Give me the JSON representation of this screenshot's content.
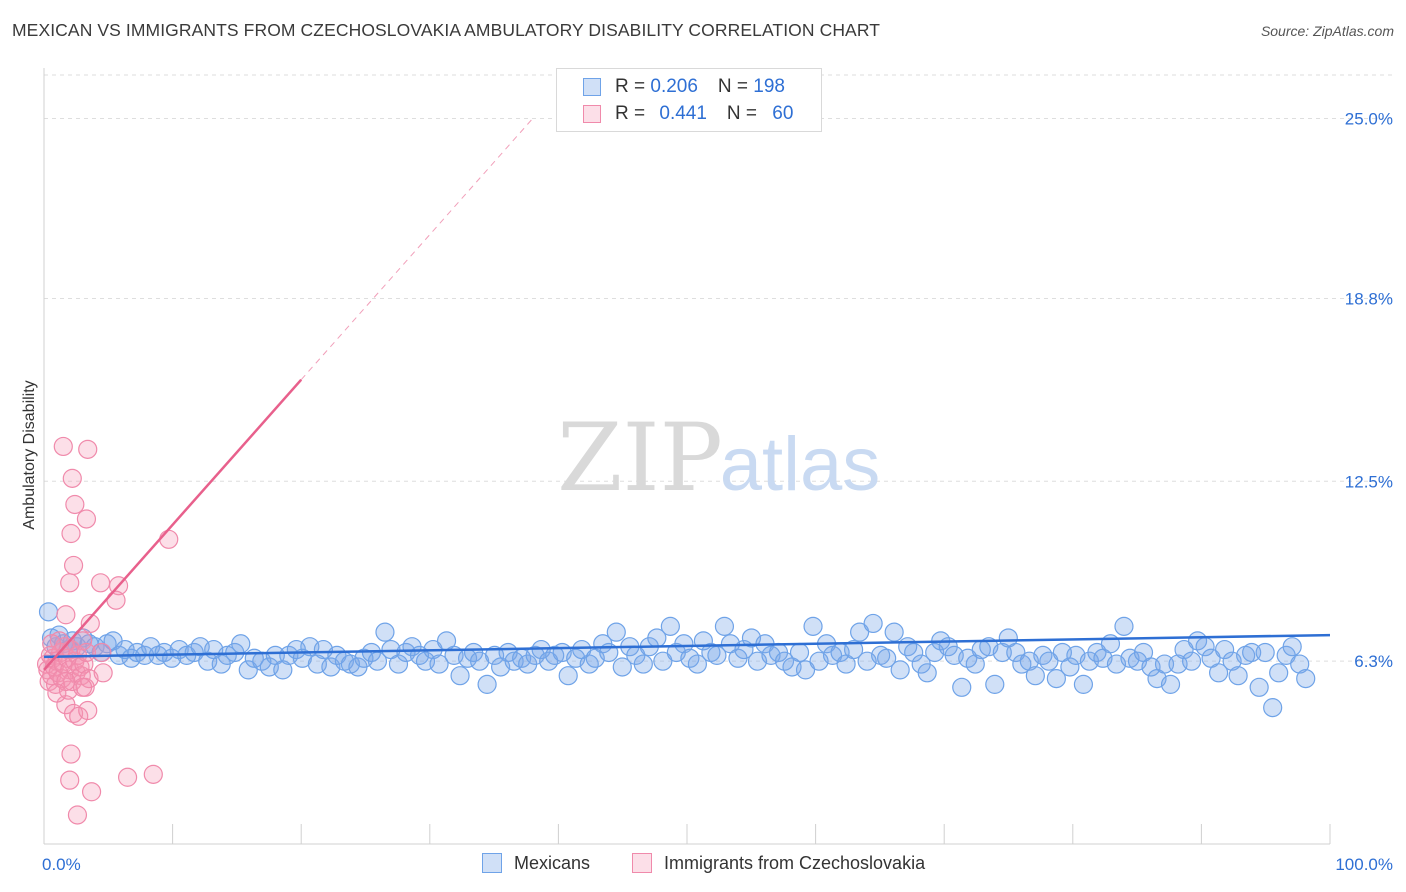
{
  "header": {
    "title": "MEXICAN VS IMMIGRANTS FROM CZECHOSLOVAKIA AMBULATORY DISABILITY CORRELATION CHART",
    "source": "Source: ZipAtlas.com"
  },
  "watermark": {
    "zip": "ZIP",
    "atlas": "atlas"
  },
  "legend": {
    "rows": [
      {
        "r_label": "R = ",
        "r_value": "0.206",
        "n_label": "N = ",
        "n_value": "198",
        "color": "#6fa3e8"
      },
      {
        "r_label": "R = ",
        "r_value": "0.441",
        "n_label": "N = ",
        "n_value": "60",
        "color": "#f08aab"
      }
    ]
  },
  "bottom_legend": {
    "mexicans": "Mexicans",
    "czech": "Immigrants from Czechoslovakia"
  },
  "colors": {
    "mexicans_fill": "rgba(120,165,232,0.35)",
    "mexicans_stroke": "#6fa3e8",
    "mexicans_line": "#2e6fd4",
    "czech_fill": "rgba(244,150,180,0.30)",
    "czech_stroke": "#f08aab",
    "czech_line": "#e8608c",
    "tick_text": "#2e6fd4"
  },
  "chart_data": {
    "type": "scatter",
    "title": "MEXICAN VS IMMIGRANTS FROM CZECHOSLOVAKIA AMBULATORY DISABILITY CORRELATION CHART",
    "xlabel": "",
    "ylabel": "Ambulatory Disability",
    "xlim": [
      0,
      100
    ],
    "ylim": [
      0,
      26.5
    ],
    "x_tick_labels": [
      "0.0%",
      "100.0%"
    ],
    "y_ticks": [
      6.3,
      12.5,
      18.8,
      25.0
    ],
    "y_tick_labels": [
      "6.3%",
      "12.5%",
      "18.8%",
      "25.0%"
    ],
    "grid": true,
    "legend_position": "top-center",
    "series": [
      {
        "name": "Mexicans",
        "R": 0.206,
        "N": 198,
        "trend": {
          "x": [
            0,
            100
          ],
          "y": [
            6.45,
            7.2
          ]
        },
        "points": [
          [
            0.3,
            8.0
          ],
          [
            0.5,
            7.1
          ],
          [
            0.8,
            6.8
          ],
          [
            1.0,
            7.2
          ],
          [
            1.3,
            6.9
          ],
          [
            1.6,
            6.7
          ],
          [
            1.9,
            7.0
          ],
          [
            2.2,
            6.8
          ],
          [
            2.6,
            7.1
          ],
          [
            3.0,
            6.9
          ],
          [
            3.4,
            6.8
          ],
          [
            3.8,
            6.6
          ],
          [
            4.2,
            6.9
          ],
          [
            4.6,
            7.0
          ],
          [
            5.0,
            6.5
          ],
          [
            5.4,
            6.7
          ],
          [
            5.8,
            6.4
          ],
          [
            6.2,
            6.6
          ],
          [
            6.7,
            6.5
          ],
          [
            7.1,
            6.8
          ],
          [
            7.6,
            6.5
          ],
          [
            8.0,
            6.6
          ],
          [
            8.5,
            6.4
          ],
          [
            9.0,
            6.7
          ],
          [
            9.5,
            6.5
          ],
          [
            10.0,
            6.6
          ],
          [
            10.4,
            6.8
          ],
          [
            10.9,
            6.3
          ],
          [
            11.3,
            6.7
          ],
          [
            11.8,
            6.2
          ],
          [
            12.2,
            6.5
          ],
          [
            12.7,
            6.6
          ],
          [
            13.1,
            6.9
          ],
          [
            13.6,
            6.0
          ],
          [
            14.0,
            6.4
          ],
          [
            14.5,
            6.3
          ],
          [
            15.0,
            6.1
          ],
          [
            15.4,
            6.5
          ],
          [
            15.9,
            6.0
          ],
          [
            16.3,
            6.5
          ],
          [
            16.8,
            6.7
          ],
          [
            17.2,
            6.4
          ],
          [
            17.7,
            6.8
          ],
          [
            18.2,
            6.2
          ],
          [
            18.6,
            6.7
          ],
          [
            19.1,
            6.1
          ],
          [
            19.5,
            6.5
          ],
          [
            20.0,
            6.3
          ],
          [
            20.4,
            6.2
          ],
          [
            20.9,
            6.1
          ],
          [
            21.3,
            6.4
          ],
          [
            21.8,
            6.6
          ],
          [
            22.2,
            6.3
          ],
          [
            22.7,
            7.3
          ],
          [
            23.1,
            6.7
          ],
          [
            23.6,
            6.2
          ],
          [
            24.1,
            6.6
          ],
          [
            24.5,
            6.8
          ],
          [
            25.0,
            6.5
          ],
          [
            25.4,
            6.3
          ],
          [
            25.9,
            6.7
          ],
          [
            26.3,
            6.2
          ],
          [
            26.8,
            7.0
          ],
          [
            27.3,
            6.5
          ],
          [
            27.7,
            5.8
          ],
          [
            28.2,
            6.4
          ],
          [
            28.6,
            6.6
          ],
          [
            29.0,
            6.3
          ],
          [
            29.5,
            5.5
          ],
          [
            30.0,
            6.5
          ],
          [
            30.4,
            6.1
          ],
          [
            30.9,
            6.6
          ],
          [
            31.3,
            6.3
          ],
          [
            31.8,
            6.4
          ],
          [
            32.2,
            6.2
          ],
          [
            32.7,
            6.5
          ],
          [
            33.1,
            6.7
          ],
          [
            33.6,
            6.3
          ],
          [
            34.0,
            6.5
          ],
          [
            34.5,
            6.6
          ],
          [
            34.9,
            5.8
          ],
          [
            35.4,
            6.4
          ],
          [
            35.8,
            6.7
          ],
          [
            36.3,
            6.2
          ],
          [
            36.7,
            6.4
          ],
          [
            37.2,
            6.9
          ],
          [
            37.6,
            6.6
          ],
          [
            38.1,
            7.3
          ],
          [
            38.5,
            6.1
          ],
          [
            39.0,
            6.8
          ],
          [
            39.4,
            6.5
          ],
          [
            39.9,
            6.2
          ],
          [
            40.3,
            6.8
          ],
          [
            40.8,
            7.1
          ],
          [
            41.2,
            6.3
          ],
          [
            41.7,
            7.5
          ],
          [
            42.1,
            6.6
          ],
          [
            42.6,
            6.9
          ],
          [
            43.0,
            6.4
          ],
          [
            43.5,
            6.2
          ],
          [
            43.9,
            7.0
          ],
          [
            44.4,
            6.6
          ],
          [
            44.8,
            6.5
          ],
          [
            45.3,
            7.5
          ],
          [
            45.7,
            6.9
          ],
          [
            46.2,
            6.4
          ],
          [
            46.6,
            6.7
          ],
          [
            47.1,
            7.1
          ],
          [
            47.5,
            6.3
          ],
          [
            48.0,
            6.9
          ],
          [
            48.4,
            6.5
          ],
          [
            48.9,
            6.6
          ],
          [
            49.3,
            6.3
          ],
          [
            49.8,
            6.1
          ],
          [
            50.3,
            6.6
          ],
          [
            50.7,
            6.0
          ],
          [
            51.2,
            7.5
          ],
          [
            51.6,
            6.3
          ],
          [
            52.1,
            6.9
          ],
          [
            52.5,
            6.5
          ],
          [
            53.0,
            6.6
          ],
          [
            53.4,
            6.2
          ],
          [
            53.9,
            6.7
          ],
          [
            54.3,
            7.3
          ],
          [
            54.8,
            6.3
          ],
          [
            55.2,
            7.6
          ],
          [
            55.7,
            6.5
          ],
          [
            56.1,
            6.4
          ],
          [
            56.6,
            7.3
          ],
          [
            57.0,
            6.0
          ],
          [
            57.5,
            6.8
          ],
          [
            57.9,
            6.6
          ],
          [
            58.4,
            6.2
          ],
          [
            58.8,
            5.9
          ],
          [
            59.3,
            6.6
          ],
          [
            59.7,
            7.0
          ],
          [
            60.2,
            6.8
          ],
          [
            60.6,
            6.5
          ],
          [
            61.1,
            5.4
          ],
          [
            61.5,
            6.4
          ],
          [
            62.0,
            6.2
          ],
          [
            62.4,
            6.7
          ],
          [
            62.9,
            6.8
          ],
          [
            63.3,
            5.5
          ],
          [
            63.8,
            6.6
          ],
          [
            64.2,
            7.1
          ],
          [
            64.7,
            6.6
          ],
          [
            65.1,
            6.2
          ],
          [
            65.6,
            6.3
          ],
          [
            66.0,
            5.8
          ],
          [
            66.5,
            6.5
          ],
          [
            66.9,
            6.3
          ],
          [
            67.4,
            5.7
          ],
          [
            67.8,
            6.6
          ],
          [
            68.3,
            6.1
          ],
          [
            68.7,
            6.5
          ],
          [
            69.2,
            5.5
          ],
          [
            69.6,
            6.3
          ],
          [
            70.1,
            6.6
          ],
          [
            70.5,
            6.4
          ],
          [
            71.0,
            6.9
          ],
          [
            71.4,
            6.2
          ],
          [
            71.9,
            7.5
          ],
          [
            72.3,
            6.4
          ],
          [
            72.8,
            6.3
          ],
          [
            73.2,
            6.6
          ],
          [
            73.7,
            6.1
          ],
          [
            74.1,
            5.7
          ],
          [
            74.6,
            6.2
          ],
          [
            75.0,
            5.5
          ],
          [
            75.5,
            6.2
          ],
          [
            75.9,
            6.7
          ],
          [
            76.4,
            6.3
          ],
          [
            76.8,
            7.0
          ],
          [
            77.3,
            6.8
          ],
          [
            77.7,
            6.4
          ],
          [
            78.2,
            5.9
          ],
          [
            78.6,
            6.7
          ],
          [
            79.1,
            6.3
          ],
          [
            79.5,
            5.8
          ],
          [
            80.0,
            6.5
          ],
          [
            80.4,
            6.6
          ],
          [
            80.9,
            5.4
          ],
          [
            81.3,
            6.6
          ],
          [
            81.8,
            4.7
          ],
          [
            82.2,
            5.9
          ],
          [
            82.7,
            6.5
          ],
          [
            83.1,
            6.8
          ],
          [
            83.6,
            6.2
          ],
          [
            84.0,
            5.7
          ]
        ]
      },
      {
        "name": "Immigrants from Czechoslovakia",
        "R": 0.441,
        "N": 60,
        "trend": {
          "x": [
            0,
            20
          ],
          "y": [
            6.0,
            16.0
          ]
        },
        "trend_extension": {
          "x": [
            20,
            38
          ],
          "y": [
            16.0,
            25.0
          ]
        },
        "points": [
          [
            0.2,
            6.2
          ],
          [
            0.3,
            6.0
          ],
          [
            0.4,
            5.6
          ],
          [
            0.5,
            6.5
          ],
          [
            0.6,
            5.8
          ],
          [
            0.7,
            6.4
          ],
          [
            0.8,
            6.1
          ],
          [
            0.9,
            5.5
          ],
          [
            1.0,
            6.3
          ],
          [
            1.1,
            5.9
          ],
          [
            1.2,
            7.0
          ],
          [
            1.3,
            6.6
          ],
          [
            1.4,
            5.7
          ],
          [
            1.5,
            6.2
          ],
          [
            1.6,
            6.8
          ],
          [
            1.7,
            4.8
          ],
          [
            1.8,
            6.4
          ],
          [
            1.9,
            5.3
          ],
          [
            2.0,
            6.0
          ],
          [
            2.1,
            6.7
          ],
          [
            2.2,
            5.6
          ],
          [
            2.3,
            4.5
          ],
          [
            2.4,
            6.3
          ],
          [
            2.5,
            5.9
          ],
          [
            2.6,
            6.5
          ],
          [
            2.7,
            4.4
          ],
          [
            2.8,
            6.1
          ],
          [
            2.9,
            5.8
          ],
          [
            3.0,
            7.0
          ],
          [
            3.1,
            6.2
          ],
          [
            3.2,
            5.4
          ],
          [
            3.3,
            6.6
          ],
          [
            3.4,
            4.6
          ],
          [
            3.5,
            5.7
          ],
          [
            1.5,
            13.7
          ],
          [
            3.4,
            13.6
          ],
          [
            2.2,
            12.6
          ],
          [
            2.4,
            11.7
          ],
          [
            3.3,
            11.2
          ],
          [
            2.1,
            10.7
          ],
          [
            9.7,
            10.5
          ],
          [
            2.3,
            9.6
          ],
          [
            2.0,
            9.0
          ],
          [
            4.4,
            9.0
          ],
          [
            5.8,
            8.9
          ],
          [
            5.6,
            8.4
          ],
          [
            1.7,
            7.9
          ],
          [
            3.6,
            7.6
          ],
          [
            4.5,
            6.6
          ],
          [
            4.6,
            5.9
          ],
          [
            3.0,
            5.4
          ],
          [
            1.7,
            5.6
          ],
          [
            0.6,
            6.9
          ],
          [
            1.0,
            5.2
          ],
          [
            2.1,
            3.1
          ],
          [
            2.0,
            2.2
          ],
          [
            3.7,
            1.8
          ],
          [
            6.5,
            2.3
          ],
          [
            8.5,
            2.4
          ],
          [
            2.6,
            1.0
          ]
        ]
      }
    ]
  }
}
